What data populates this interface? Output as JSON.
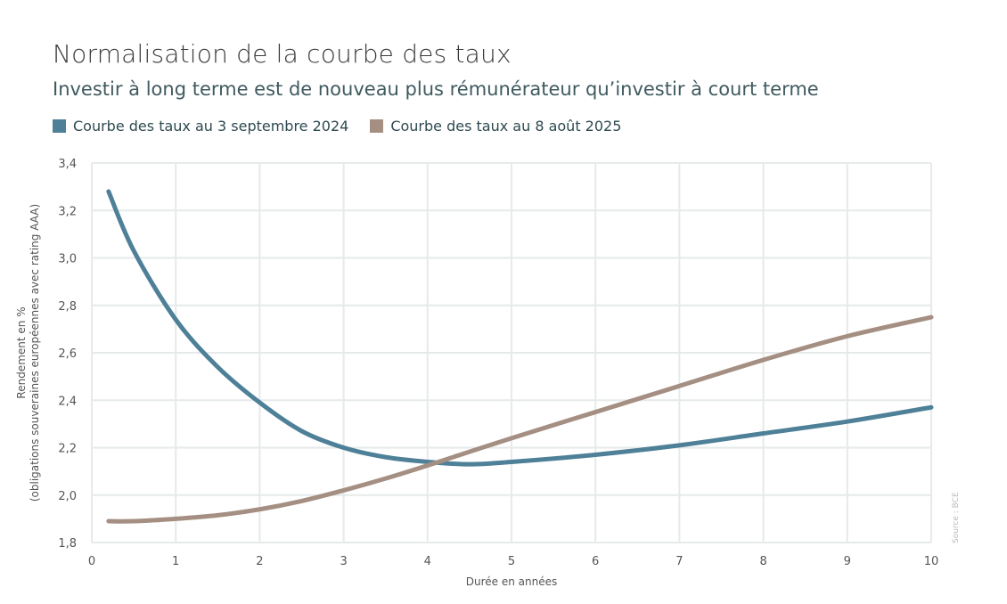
{
  "title": "Normalisation de la courbe des taux",
  "subtitle": "Investir à long terme est de nouveau plus rémunérateur qu’investir à court terme",
  "source": "Source : BCE",
  "chart_data": {
    "type": "line",
    "xlabel": "Durée en années",
    "ylabel_line1": "Rendement en %",
    "ylabel_line2": "(obligations souveraines européennes avec rating AAA)",
    "xlim": [
      0,
      10
    ],
    "ylim": [
      1.8,
      3.4
    ],
    "xticks": [
      0,
      1,
      2,
      3,
      4,
      5,
      6,
      7,
      8,
      9,
      10
    ],
    "yticks": [
      "1,8",
      "2,0",
      "2,2",
      "2,4",
      "2,6",
      "2,8",
      "3,0",
      "3,2",
      "3,4"
    ],
    "grid": true,
    "legend_position": "top-left",
    "series": [
      {
        "name": "Courbe des taux au 3 septembre 2024",
        "color": "#4e8098",
        "x": [
          0.2,
          0.5,
          1,
          1.5,
          2,
          2.5,
          3,
          3.5,
          4,
          4.5,
          5,
          6,
          7,
          8,
          9,
          10
        ],
        "y": [
          3.28,
          3.03,
          2.74,
          2.54,
          2.39,
          2.27,
          2.2,
          2.16,
          2.14,
          2.13,
          2.14,
          2.17,
          2.21,
          2.26,
          2.31,
          2.37
        ]
      },
      {
        "name": "Courbe des taux au 8 août 2025",
        "color": "#a48f82",
        "x": [
          0.2,
          0.5,
          1,
          1.5,
          2,
          2.5,
          3,
          3.5,
          4,
          5,
          6,
          7,
          8,
          9,
          10
        ],
        "y": [
          1.89,
          1.89,
          1.9,
          1.915,
          1.94,
          1.975,
          2.02,
          2.07,
          2.125,
          2.24,
          2.35,
          2.46,
          2.57,
          2.67,
          2.75
        ]
      }
    ]
  }
}
